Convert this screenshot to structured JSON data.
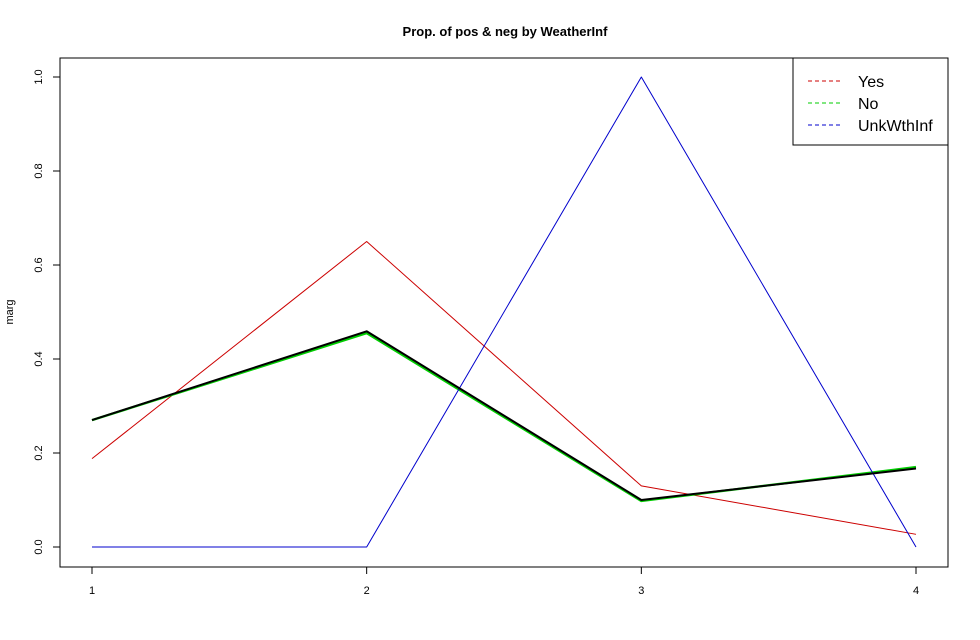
{
  "chart_data": {
    "type": "line",
    "title": "Prop. of pos & neg by WeatherInf",
    "xlabel": "",
    "ylabel": "marg",
    "x": [
      1,
      2,
      3,
      4
    ],
    "xlim": [
      1,
      4
    ],
    "ylim": [
      0,
      1
    ],
    "x_ticks": [
      "1",
      "2",
      "3",
      "4"
    ],
    "y_ticks": [
      "0.0",
      "0.2",
      "0.4",
      "0.6",
      "0.8",
      "1.0"
    ],
    "grid": false,
    "legend_position": "top-right",
    "series": [
      {
        "name": "Yes",
        "color": "#cc0000",
        "values": [
          0.188,
          0.65,
          0.13,
          0.027
        ]
      },
      {
        "name": "No",
        "color": "#00cc00",
        "values": [
          0.27,
          0.455,
          0.098,
          0.17
        ]
      },
      {
        "name": "UnkWthInf",
        "color": "#0000cc",
        "values": [
          0.0,
          0.0,
          1.0,
          0.0
        ]
      },
      {
        "color": "#000000",
        "values": [
          0.27,
          0.459,
          0.1,
          0.167
        ]
      }
    ]
  }
}
